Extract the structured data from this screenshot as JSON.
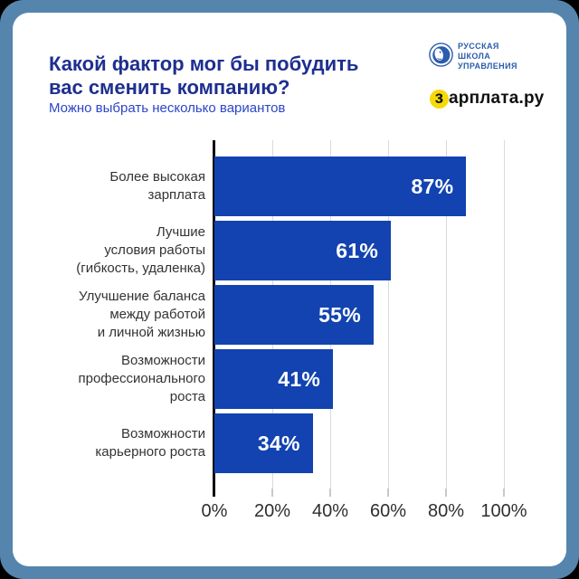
{
  "header": {
    "title_lines": [
      "Какой фактор мог бы побудить",
      "вас сменить компанию?"
    ],
    "subtitle": "Можно выбрать несколько вариантов"
  },
  "logos": {
    "rshu": {
      "lines": [
        "РУССКАЯ",
        "ШКОЛА",
        "УПРАВЛЕНИЯ"
      ],
      "color": "#2B5CAD"
    },
    "zarplata": {
      "first_letter": "з",
      "rest": "арплата.ру",
      "mark_color": "#F6D908"
    }
  },
  "colors": {
    "frame": "#5585AC",
    "card": "#FFFFFF",
    "title": "#1E2F8F",
    "subtitle": "#2A46C8",
    "axis": "#0B0B0B",
    "gridline": "#DADADA",
    "labels": "#333333"
  },
  "chart_data": {
    "type": "bar",
    "orientation": "horizontal",
    "title": "Какой фактор мог бы побудить вас сменить компанию?",
    "subtitle": "Можно выбрать несколько вариантов",
    "categories": [
      "Более высокая зарплата",
      "Лучшие условия работы (гибкость, удаленка)",
      "Улучшение баланса между работой и личной жизнью",
      "Возможности профессионального роста",
      "Возможности карьерного роста"
    ],
    "category_lines": [
      [
        "Более высокая",
        "зарплата"
      ],
      [
        "Лучшие",
        "условия работы",
        "(гибкость, удаленка)"
      ],
      [
        "Улучшение баланса",
        "между работой",
        "и личной жизнью"
      ],
      [
        "Возможности",
        "профессионального",
        "роста"
      ],
      [
        "Возможности",
        "карьерного роста"
      ]
    ],
    "values": [
      87,
      61,
      55,
      41,
      34
    ],
    "value_labels": [
      "87%",
      "61%",
      "55%",
      "41%",
      "34%"
    ],
    "x_ticks": [
      "0%",
      "20%",
      "40%",
      "60%",
      "80%",
      "100%"
    ],
    "xlim": [
      0,
      100
    ],
    "grid": true,
    "bar_color": "#1243B0",
    "value_label_color": "#FFFFFF"
  }
}
